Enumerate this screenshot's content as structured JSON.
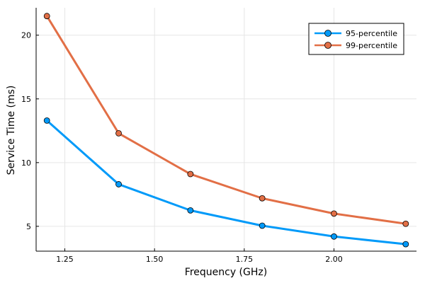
{
  "chart_data": {
    "type": "line",
    "title": "",
    "xlabel": "Frequency (GHz)",
    "ylabel": "Service Time (ms)",
    "x": [
      1.2,
      1.4,
      1.6,
      1.8,
      2.0,
      2.2
    ],
    "xlim": [
      1.17,
      2.23
    ],
    "ylim": [
      3.05,
      22.15
    ],
    "xticks": [
      1.25,
      1.5,
      1.75,
      2.0
    ],
    "xtick_labels": [
      "1.25",
      "1.50",
      "1.75",
      "2.00"
    ],
    "yticks": [
      5,
      10,
      15,
      20
    ],
    "ytick_labels": [
      "5",
      "10",
      "15",
      "20"
    ],
    "grid": true,
    "legend_position": "top-right",
    "series": [
      {
        "name": "95-percentile",
        "color": "#009af9",
        "values": [
          13.3,
          8.3,
          6.25,
          5.05,
          4.2,
          3.6
        ]
      },
      {
        "name": "99-percentile",
        "color": "#e26f46",
        "values": [
          21.5,
          12.3,
          9.1,
          7.2,
          6.0,
          5.2
        ]
      }
    ]
  }
}
